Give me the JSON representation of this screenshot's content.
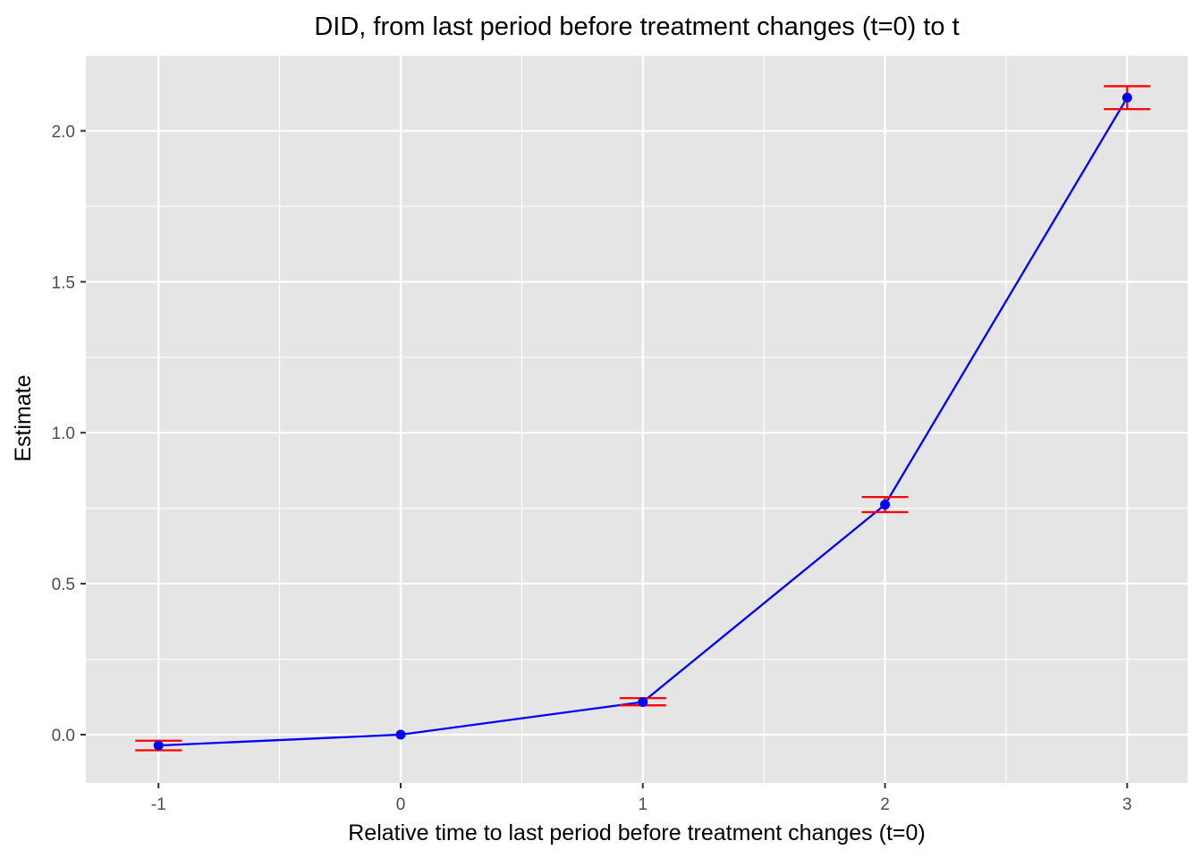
{
  "chart_data": {
    "type": "line",
    "title": "DID, from last period before treatment changes (t=0) to t",
    "xlabel": "Relative time to last period before treatment changes (t=0)",
    "ylabel": "Estimate",
    "xlim": [
      -1.3,
      3.25
    ],
    "ylim": [
      -0.16,
      2.25
    ],
    "x_ticks": [
      -1,
      0,
      1,
      2,
      3
    ],
    "x_tick_labels": [
      "-1",
      "0",
      "1",
      "2",
      "3"
    ],
    "y_ticks": [
      0.0,
      0.5,
      1.0,
      1.5,
      2.0
    ],
    "y_tick_labels": [
      "0.0",
      "0.5",
      "1.0",
      "1.5",
      "2.0"
    ],
    "grid": true,
    "series": [
      {
        "line_color": "#0000ff",
        "point_color": "#0000ff",
        "error_bar_color": "#ff0000",
        "points": [
          {
            "x": -1,
            "y": -0.036,
            "ymin": -0.052,
            "ymax": -0.02
          },
          {
            "x": 0,
            "y": 0.0,
            "ymin": null,
            "ymax": null
          },
          {
            "x": 1,
            "y": 0.108,
            "ymin": 0.097,
            "ymax": 0.121
          },
          {
            "x": 2,
            "y": 0.762,
            "ymin": 0.737,
            "ymax": 0.787
          },
          {
            "x": 3,
            "y": 2.11,
            "ymin": 2.072,
            "ymax": 2.148
          }
        ]
      }
    ],
    "panel_background": "#e5e5e5",
    "grid_color": "#ffffff"
  }
}
